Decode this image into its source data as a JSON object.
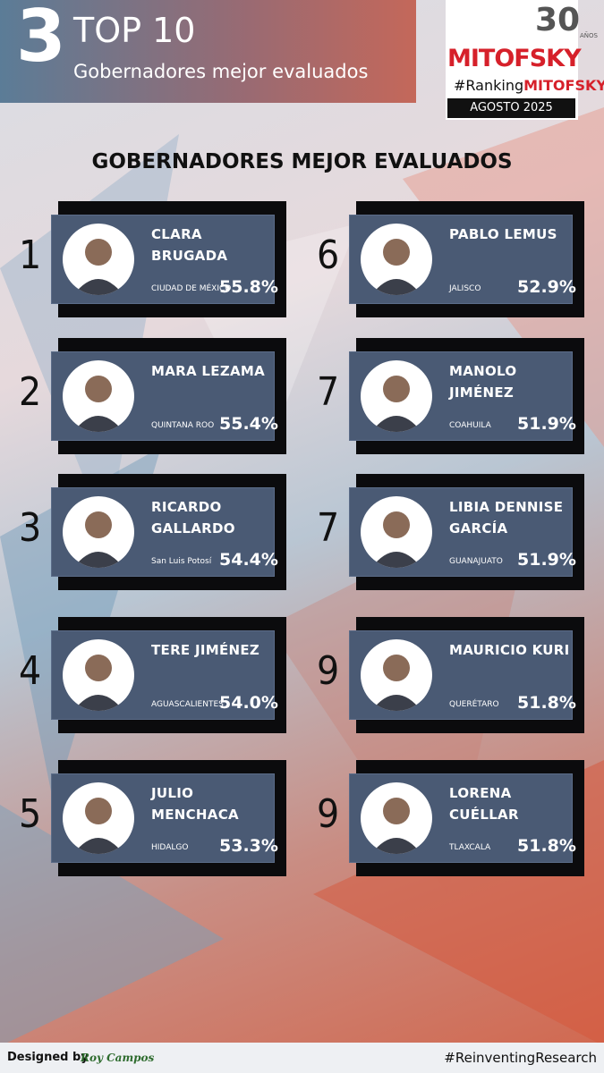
{
  "header": {
    "number": "3",
    "title": "TOP 10",
    "subtitle": "Gobernadores mejor evaluados"
  },
  "logo": {
    "anniversary": "30",
    "anniversary_unit": "AÑOS",
    "brand": "MITOFSKY",
    "hashtag_prefix": "#Ranking",
    "hashtag_brand": "MITOFSKY",
    "date": "AGOSTO 2025"
  },
  "heading": "GOBERNADORES MEJOR EVALUADOS",
  "entries": [
    {
      "rank": "1",
      "name": "CLARA BRUGADA",
      "state": "CIUDAD DE MÉXICO",
      "score": "55.8%"
    },
    {
      "rank": "2",
      "name": "MARA LEZAMA",
      "state": "QUINTANA ROO",
      "score": "55.4%"
    },
    {
      "rank": "3",
      "name": "RICARDO GALLARDO",
      "state": "San Luis Potosí",
      "score": "54.4%"
    },
    {
      "rank": "4",
      "name": "TERE JIMÉNEZ",
      "state": "AGUASCALIENTES",
      "score": "54.0%"
    },
    {
      "rank": "5",
      "name": "JULIO MENCHACA",
      "state": "HIDALGO",
      "score": "53.3%"
    },
    {
      "rank": "6",
      "name": "PABLO LEMUS",
      "state": "JALISCO",
      "score": "52.9%"
    },
    {
      "rank": "7",
      "name": "MANOLO JIMÉNEZ",
      "state": "COAHUILA",
      "score": "51.9%"
    },
    {
      "rank": "7",
      "name": "LIBIA DENNISE GARCÍA",
      "state": "GUANAJUATO",
      "score": "51.9%"
    },
    {
      "rank": "9",
      "name": "MAURICIO KURI",
      "state": "QUERÉTARO",
      "score": "51.8%"
    },
    {
      "rank": "9",
      "name": "LORENA CUÉLLAR",
      "state": "TLAXCALA",
      "score": "51.8%"
    }
  ],
  "footer": {
    "designed_by": "Designed by",
    "designer": "Roy Campos",
    "hashtag": "#ReinventingResearch"
  }
}
